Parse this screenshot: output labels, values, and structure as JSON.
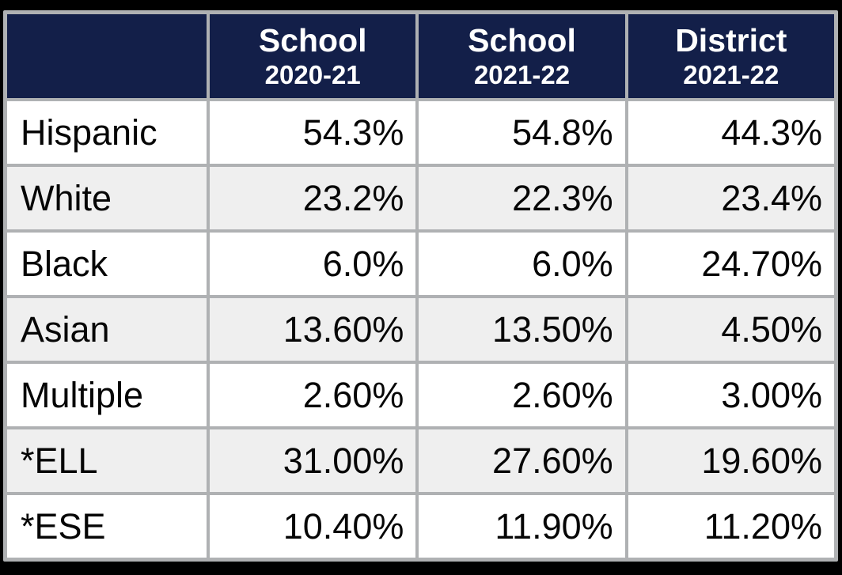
{
  "table": {
    "columns": [
      {
        "title": "",
        "subtitle": ""
      },
      {
        "title": "School",
        "subtitle": "2020-21"
      },
      {
        "title": "School",
        "subtitle": "2021-22"
      },
      {
        "title": "District",
        "subtitle": "2021-22"
      }
    ],
    "rows": [
      {
        "label": "Hispanic",
        "values": [
          "54.3%",
          "54.8%",
          "44.3%"
        ]
      },
      {
        "label": "White",
        "values": [
          "23.2%",
          "22.3%",
          "23.4%"
        ]
      },
      {
        "label": "Black",
        "values": [
          "6.0%",
          "6.0%",
          "24.70%"
        ]
      },
      {
        "label": "Asian",
        "values": [
          "13.60%",
          "13.50%",
          "4.50%"
        ]
      },
      {
        "label": "Multiple",
        "values": [
          "2.60%",
          "2.60%",
          "3.00%"
        ]
      },
      {
        "label": "*ELL",
        "values": [
          "31.00%",
          "27.60%",
          "19.60%"
        ]
      },
      {
        "label": "*ESE",
        "values": [
          "10.40%",
          "11.90%",
          "11.20%"
        ]
      }
    ],
    "colors": {
      "header_bg": "#131F49",
      "header_text": "#FFFFFF",
      "grid_border": "#AFB1B3",
      "row_bg": "#FFFFFF",
      "row_alt_bg": "#EFEFEF",
      "body_text": "#060606",
      "frame_bg": "#000000"
    }
  },
  "chart_data": {
    "type": "table",
    "title": "School demographics comparison",
    "categories": [
      "Hispanic",
      "White",
      "Black",
      "Asian",
      "Multiple",
      "*ELL",
      "*ESE"
    ],
    "series": [
      {
        "name": "School 2020-21",
        "values": [
          54.3,
          23.2,
          6.0,
          13.6,
          2.6,
          31.0,
          10.4
        ]
      },
      {
        "name": "School 2021-22",
        "values": [
          54.8,
          22.3,
          6.0,
          13.5,
          2.6,
          27.6,
          11.9
        ]
      },
      {
        "name": "District 2021-22",
        "values": [
          44.3,
          23.4,
          24.7,
          4.5,
          3.0,
          19.6,
          11.2
        ]
      }
    ],
    "value_unit": "%"
  }
}
